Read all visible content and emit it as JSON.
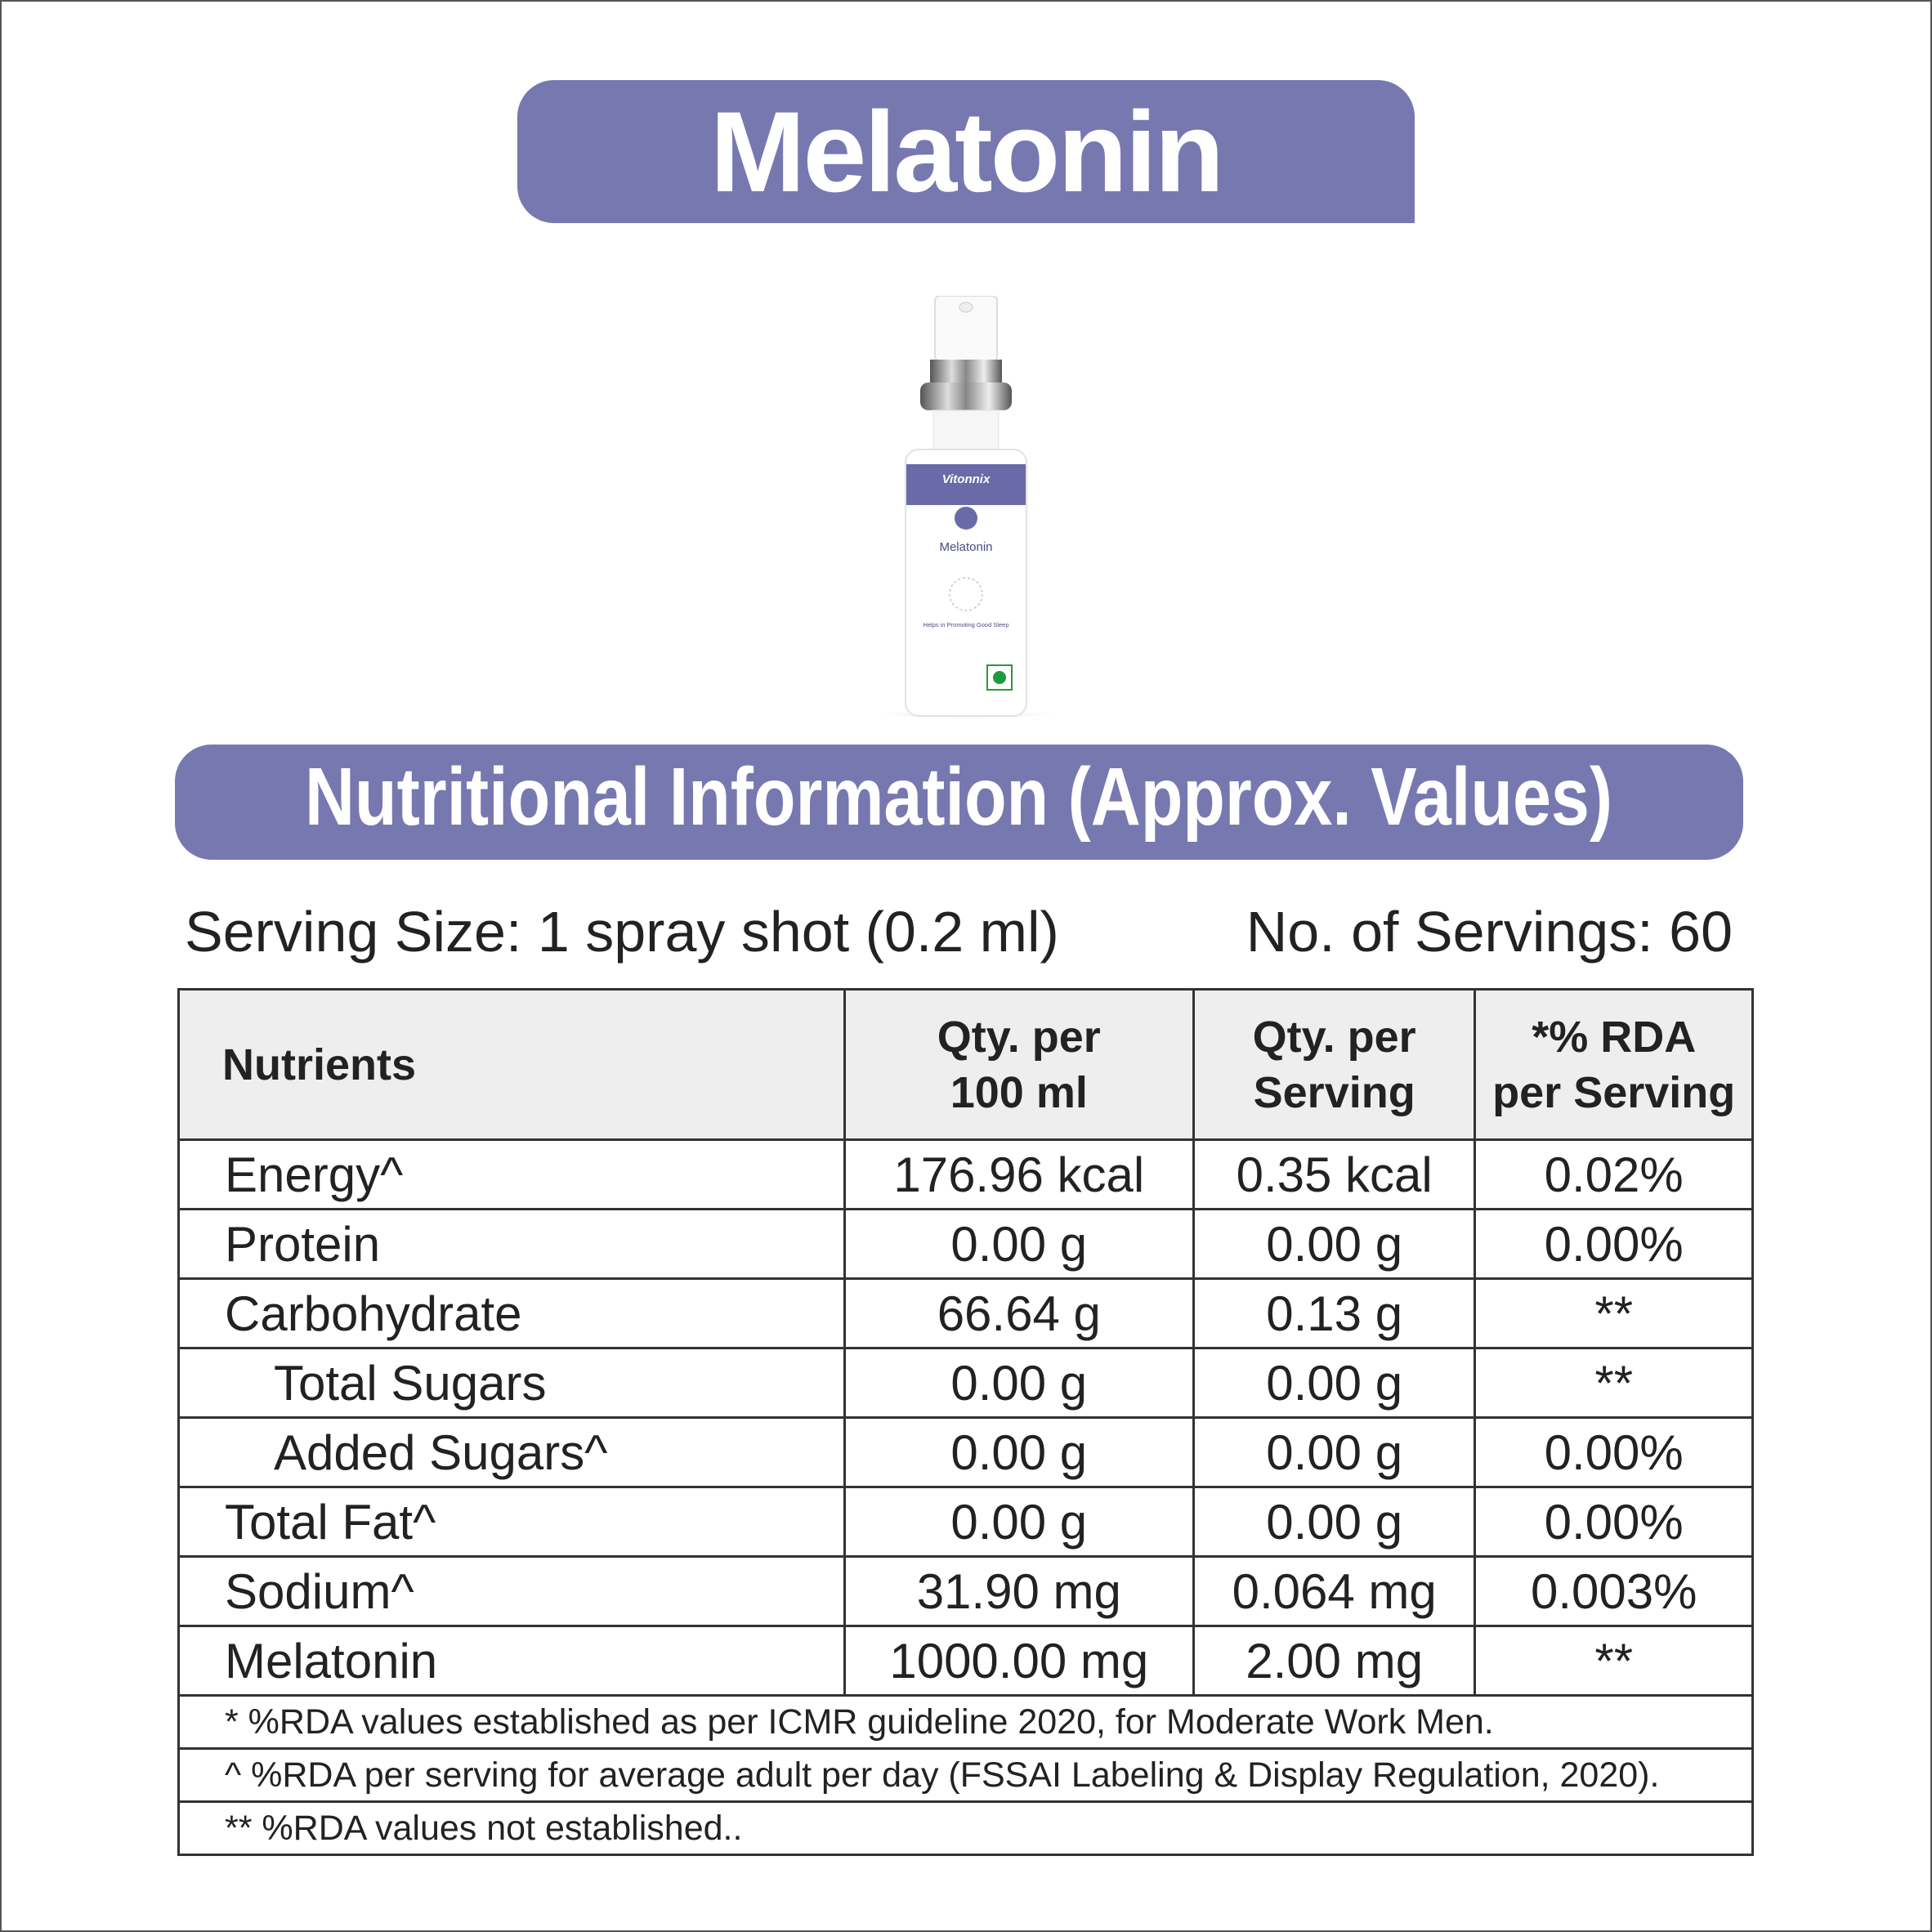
{
  "header": {
    "title": "Melatonin"
  },
  "product": {
    "brand": "Vitonnix",
    "name": "Melatonin",
    "tagline": "Helps in Promoting Good Sleep"
  },
  "section": {
    "title": "Nutritional Information (Approx. Values)"
  },
  "serving": {
    "size": "Serving Size: 1 spray shot (0.2 ml)",
    "count": "No. of Servings: 60"
  },
  "table": {
    "columns": [
      "Nutrients",
      "Qty. per\n100 ml",
      "Qty. per\nServing",
      "*% RDA\nper Serving"
    ],
    "rows": [
      [
        "Energy^",
        "176.96 kcal",
        "0.35 kcal",
        "0.02%"
      ],
      [
        "Protein",
        "0.00 g",
        "0.00 g",
        "0.00%"
      ],
      [
        "Carbohydrate",
        "66.64 g",
        "0.13 g",
        "**"
      ],
      [
        "Total Sugars",
        "0.00 g",
        "0.00 g",
        "**"
      ],
      [
        "Added Sugars^",
        "0.00 g",
        "0.00 g",
        "0.00%"
      ],
      [
        "Total Fat^",
        "0.00 g",
        "0.00 g",
        "0.00%"
      ],
      [
        "Sodium^",
        "31.90 mg",
        "0.064 mg",
        "0.003%"
      ],
      [
        "Melatonin",
        "1000.00 mg",
        "2.00 mg",
        "**"
      ]
    ]
  },
  "footnotes": [
    "* %RDA values established as per ICMR guideline 2020, for Moderate Work Men.",
    "^ %RDA per serving for average adult per day (FSSAI Labeling & Display Regulation, 2020).",
    "** %RDA values not established.."
  ]
}
